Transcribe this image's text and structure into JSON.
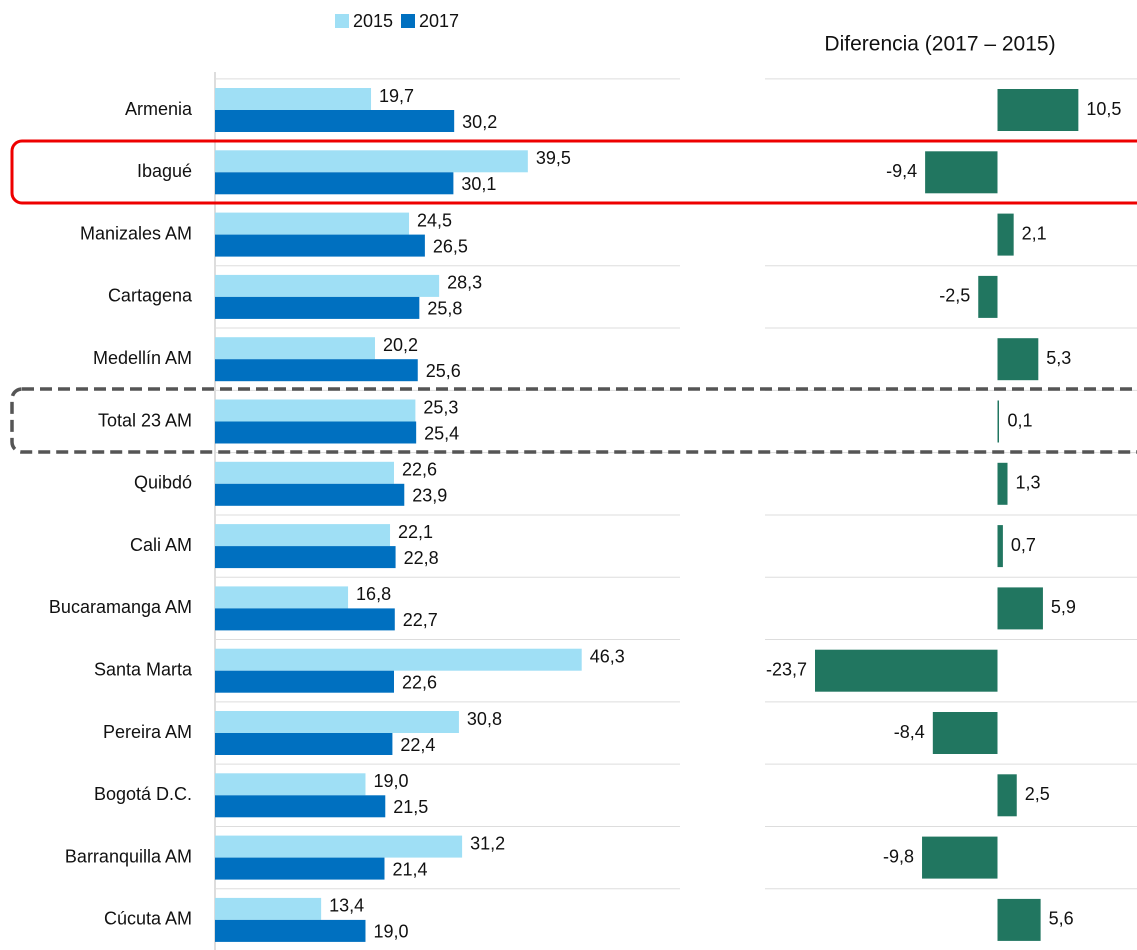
{
  "chart_data": [
    {
      "type": "bar",
      "orientation": "horizontal",
      "categories": [
        "Armenia",
        "Ibagué",
        "Manizales AM",
        "Cartagena",
        "Medellín AM",
        "Total 23 AM",
        "Quibdó",
        "Cali AM",
        "Bucaramanga AM",
        "Santa Marta",
        "Pereira AM",
        "Bogotá D.C.",
        "Barranquilla AM",
        "Cúcuta AM"
      ],
      "series": [
        {
          "name": "2015",
          "color": "#9fdff5",
          "values": [
            19.7,
            39.5,
            24.5,
            28.3,
            20.2,
            25.3,
            22.6,
            22.1,
            16.8,
            46.3,
            30.8,
            19.0,
            31.2,
            13.4
          ],
          "value_labels": [
            "19,7",
            "39,5",
            "24,5",
            "28,3",
            "20,2",
            "25,3",
            "22,6",
            "22,1",
            "16,8",
            "46,3",
            "30,8",
            "19,0",
            "31,2",
            "13,4"
          ]
        },
        {
          "name": "2017",
          "color": "#0070c0",
          "values": [
            30.2,
            30.1,
            26.5,
            25.8,
            25.6,
            25.4,
            23.9,
            22.8,
            22.7,
            22.6,
            22.4,
            21.5,
            21.4,
            19.0
          ],
          "value_labels": [
            "30,2",
            "30,1",
            "26,5",
            "25,8",
            "25,6",
            "25,4",
            "23,9",
            "22,8",
            "22,7",
            "22,6",
            "22,4",
            "21,5",
            "21,4",
            "19,0"
          ]
        }
      ],
      "xlim": [
        0,
        50
      ],
      "legend": "top",
      "grid": true
    },
    {
      "type": "bar",
      "orientation": "horizontal",
      "title": "Diferencia (2017 – 2015)",
      "color": "#217660",
      "values": [
        10.5,
        -9.4,
        2.1,
        -2.5,
        5.3,
        0.1,
        1.3,
        0.7,
        5.9,
        -23.7,
        -8.4,
        2.5,
        -9.8,
        5.6
      ],
      "value_labels": [
        "10,5",
        "-9,4",
        "2,1",
        "-2,5",
        "5,3",
        "0,1",
        "1,3",
        "0,7",
        "5,9",
        "-23,7",
        "-8,4",
        "2,5",
        "-9,8",
        "5,6"
      ],
      "xlim": [
        -25,
        15
      ],
      "grid": true
    }
  ]
}
